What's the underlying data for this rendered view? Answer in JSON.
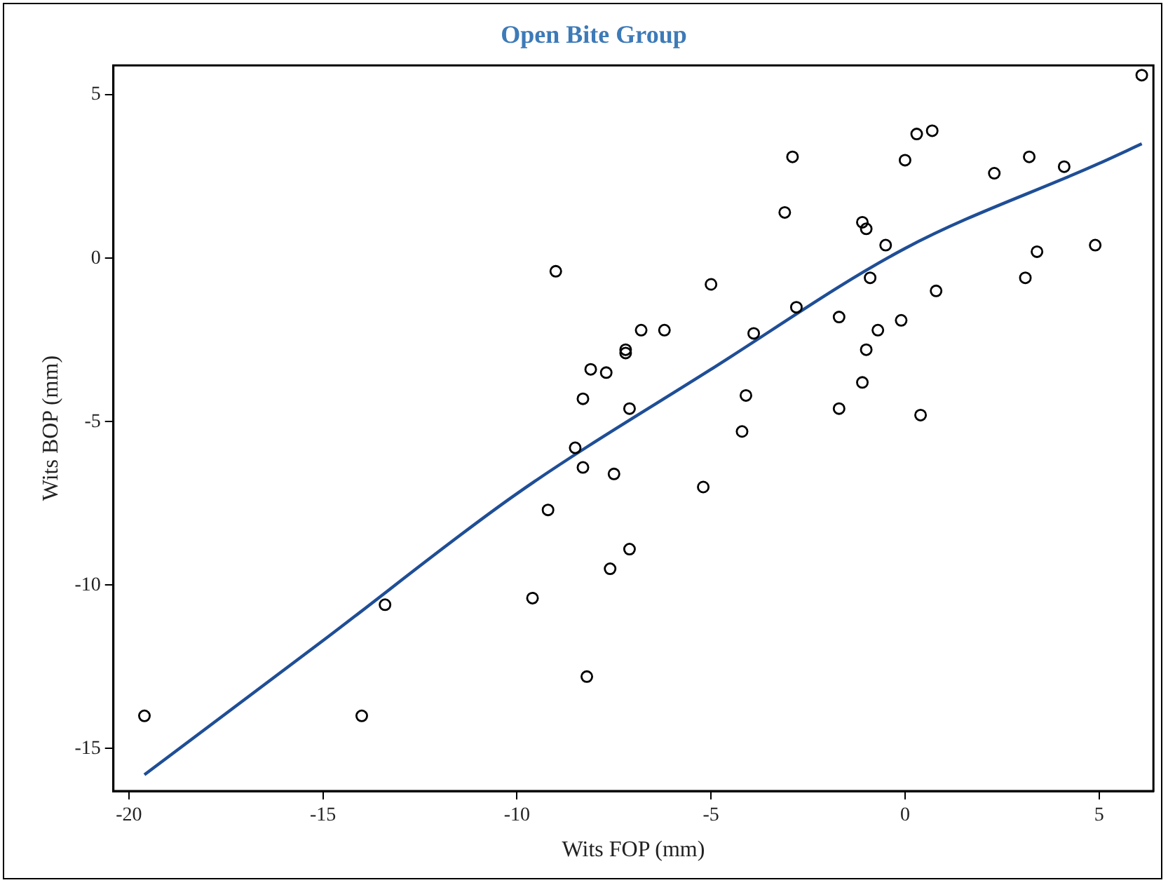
{
  "chart_data": {
    "type": "scatter",
    "title": "Open Bite Group",
    "xlabel": "Wits FOP (mm)",
    "ylabel": "Wits BOP (mm)",
    "xlim": [
      -20.4,
      6.4
    ],
    "xticks": [
      -20,
      -15,
      -10,
      -5,
      0,
      5
    ],
    "ylim": [
      -16.3,
      5.9
    ],
    "yticks": [
      -15,
      -10,
      -5,
      0,
      5
    ],
    "grid": false,
    "legend": false,
    "series": [
      {
        "color": "#000000",
        "marker": "circle",
        "x": [
          -19.6,
          -14.0,
          -13.4,
          -9.6,
          -9.2,
          -9.0,
          -8.5,
          -8.3,
          -8.3,
          -8.2,
          -8.1,
          -7.7,
          -7.6,
          -7.5,
          -7.2,
          -7.2,
          -7.1,
          -7.1,
          -6.8,
          -6.2,
          -5.2,
          -5.0,
          -4.2,
          -4.1,
          -3.9,
          -3.1,
          -2.9,
          -2.8,
          -1.7,
          -1.7,
          -1.1,
          -1.0,
          -1.1,
          -1.0,
          -0.9,
          -0.7,
          -0.5,
          -0.1,
          0.0,
          0.3,
          0.7,
          0.4,
          0.8,
          2.3,
          3.1,
          3.2,
          3.4,
          4.1,
          4.9,
          6.1
        ],
        "values": [
          -14.0,
          -14.0,
          -10.6,
          -10.4,
          -7.7,
          -0.4,
          -5.8,
          -6.4,
          -4.3,
          -12.8,
          -3.4,
          -3.5,
          -9.5,
          -6.6,
          -2.8,
          -2.9,
          -8.9,
          -4.6,
          -2.2,
          -2.2,
          -7.0,
          -0.8,
          -5.3,
          -4.2,
          -2.3,
          1.4,
          3.1,
          -1.5,
          -1.8,
          -4.6,
          1.1,
          0.9,
          -3.8,
          -2.8,
          -0.6,
          -2.2,
          0.4,
          -1.9,
          3.0,
          3.8,
          3.9,
          -4.8,
          -1.0,
          2.6,
          -0.6,
          3.1,
          0.2,
          2.8,
          0.4,
          5.6
        ]
      },
      {
        "type": "line",
        "color": "#1f4e96",
        "marker": "none",
        "line_style": "solid",
        "x": [
          -19.6,
          -15,
          -10,
          -5,
          0,
          5,
          6.1
        ],
        "values": [
          -15.8,
          -11.7,
          -7.2,
          -3.4,
          0.3,
          2.9,
          3.5
        ]
      }
    ]
  }
}
